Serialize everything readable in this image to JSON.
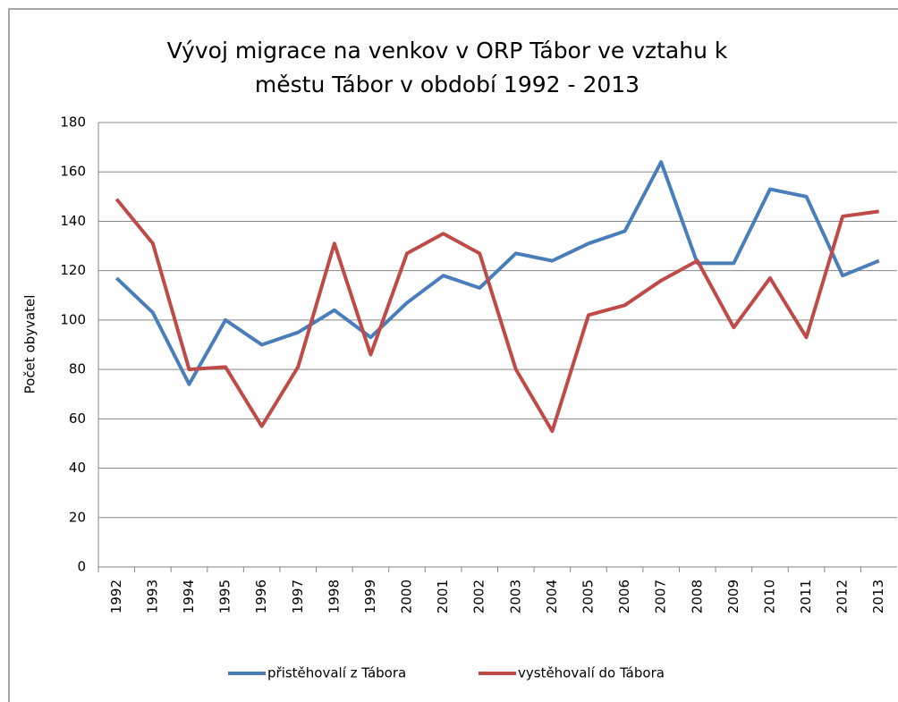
{
  "chart_data": {
    "type": "line",
    "title": "Vývoj migrace na venkov v ORP Tábor ve vztahu k městu Tábor v období 1992 - 2013",
    "y_label": "Počet obyvatel",
    "categories": [
      "1992",
      "1993",
      "1994",
      "1995",
      "1996",
      "1997",
      "1998",
      "1999",
      "2000",
      "2001",
      "2002",
      "2003",
      "2004",
      "2005",
      "2006",
      "2007",
      "2008",
      "2009",
      "2010",
      "2011",
      "2012",
      "2013"
    ],
    "series": [
      {
        "name": "přistěhovalí z Tábora",
        "color": "#4a7ebb",
        "values": [
          117,
          103,
          74,
          100,
          90,
          95,
          104,
          93,
          107,
          118,
          113,
          127,
          124,
          131,
          136,
          164,
          123,
          123,
          153,
          150,
          118,
          124
        ]
      },
      {
        "name": "vystěhovalí do Tábora",
        "color": "#be4b48",
        "values": [
          149,
          131,
          80,
          81,
          57,
          81,
          131,
          86,
          127,
          135,
          127,
          80,
          55,
          102,
          106,
          116,
          124,
          97,
          117,
          93,
          142,
          144
        ]
      }
    ],
    "ylim": [
      0,
      180
    ],
    "yticks": [
      0,
      20,
      40,
      60,
      80,
      100,
      120,
      140,
      160,
      180
    ],
    "grid": true,
    "legend": "bottom"
  }
}
